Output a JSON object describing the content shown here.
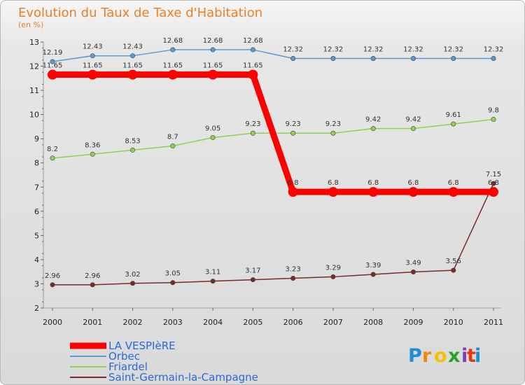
{
  "chart_data": {
    "type": "line",
    "title": "Evolution du Taux de Taxe d'Habitation",
    "subtitle": "(en %)",
    "x": [
      "2000",
      "2001",
      "2002",
      "2003",
      "2004",
      "2005",
      "2006",
      "2007",
      "2008",
      "2009",
      "2010",
      "2011"
    ],
    "ylim": [
      2,
      13
    ],
    "yticks": [
      2,
      3,
      4,
      5,
      6,
      7,
      8,
      9,
      10,
      11,
      12,
      13
    ],
    "grid": false,
    "legend_position": "bottom-left",
    "series": [
      {
        "name": "LA VESPIèRE",
        "color": "#ff0000",
        "values": [
          11.65,
          11.65,
          11.65,
          11.65,
          11.65,
          11.65,
          6.8,
          6.8,
          6.8,
          6.8,
          6.8,
          6.8
        ],
        "labels": [
          "11.65",
          "11.65",
          "11.65",
          "11.65",
          "11.65",
          "11.65",
          "6.8",
          "6.8",
          "6.8",
          "6.8",
          "6.8",
          "6.8"
        ]
      },
      {
        "name": "Orbec",
        "color": "#5b9bd5",
        "values": [
          12.19,
          12.43,
          12.43,
          12.68,
          12.68,
          12.68,
          12.32,
          12.32,
          12.32,
          12.32,
          12.32,
          12.32
        ],
        "labels": [
          "12.19",
          "12.43",
          "12.43",
          "12.68",
          "12.68",
          "12.68",
          "12.32",
          "12.32",
          "12.32",
          "12.32",
          "12.32",
          "12.32"
        ]
      },
      {
        "name": "Friardel",
        "color": "#92d050",
        "values": [
          8.2,
          8.36,
          8.53,
          8.7,
          9.05,
          9.23,
          9.23,
          9.23,
          9.42,
          9.42,
          9.61,
          9.8
        ],
        "labels": [
          "8.2",
          "8.36",
          "8.53",
          "8.7",
          "9.05",
          "9.23",
          "9.23",
          "9.23",
          "9.42",
          "9.42",
          "9.61",
          "9.8"
        ]
      },
      {
        "name": "Saint-Germain-la-Campagne",
        "color": "#7a2a2a",
        "values": [
          2.96,
          2.96,
          3.02,
          3.05,
          3.11,
          3.17,
          3.23,
          3.29,
          3.39,
          3.49,
          3.56,
          7.15
        ],
        "labels": [
          "2.96",
          "2.96",
          "3.02",
          "3.05",
          "3.11",
          "3.17",
          "3.23",
          "3.29",
          "3.39",
          "3.49",
          "3.56",
          "7.15"
        ]
      }
    ]
  },
  "logo": {
    "letters": [
      "P",
      "r",
      "o",
      "x",
      "i",
      "t",
      "i"
    ],
    "colors": [
      "#1f8ed6",
      "#f08a00",
      "#f5c000",
      "#2ca02c",
      "#7c3fbf",
      "#e5361b",
      "#1f8ed6"
    ]
  }
}
